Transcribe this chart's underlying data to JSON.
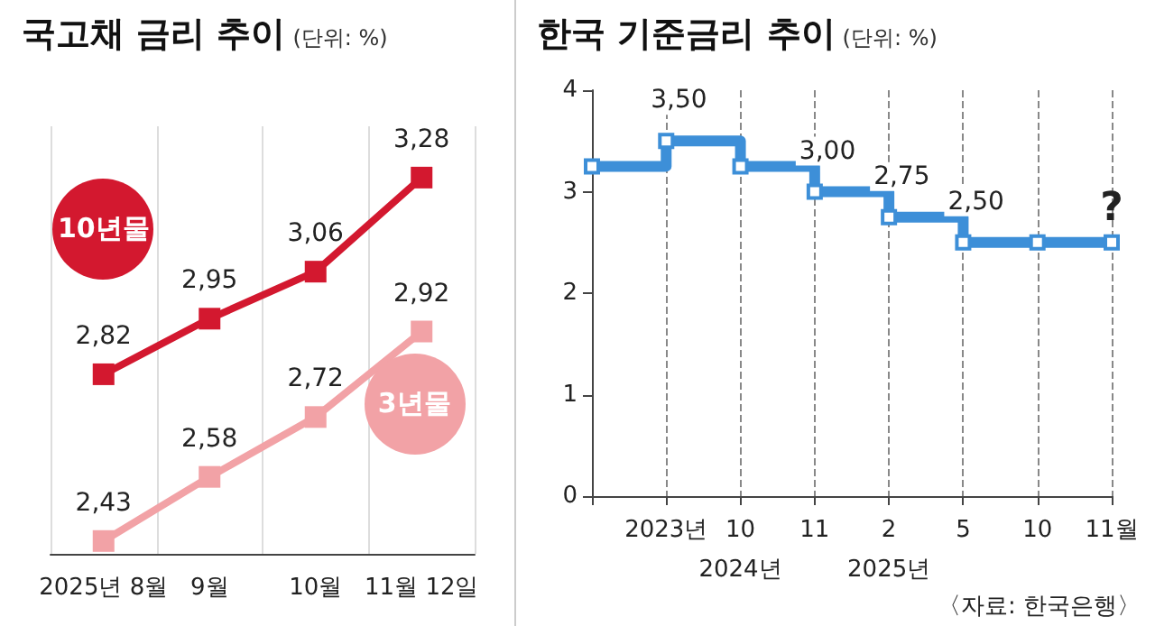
{
  "chart_data": [
    {
      "type": "line",
      "title": "국고채 금리 추이",
      "subtitle": "(단위: %)",
      "categories": [
        "2025년 8월",
        "9월",
        "10월",
        "11월 12일"
      ],
      "series": [
        {
          "name": "10년물",
          "color": "#d3182f",
          "values": [
            2.82,
            2.95,
            3.06,
            3.28
          ],
          "value_labels": [
            "2,82",
            "2,95",
            "3,06",
            "3,28"
          ]
        },
        {
          "name": "3년물",
          "color": "#f2a2a6",
          "values": [
            2.43,
            2.58,
            2.72,
            2.92
          ],
          "value_labels": [
            "2,43",
            "2,58",
            "2,72",
            "2,92"
          ]
        }
      ],
      "marker": "square",
      "grid": "x",
      "legend": false,
      "tick_labels": "x"
    },
    {
      "type": "step",
      "title": "한국 기준금리 추이",
      "subtitle": "(단위: %)",
      "categories": [
        null,
        "2023년",
        "10\n2024년",
        "11",
        "2\n2025년",
        "5",
        "10",
        "11월"
      ],
      "series": [
        {
          "color": "#3d8fd8",
          "values": [
            3.25,
            3.5,
            3.25,
            3.0,
            2.75,
            2.5,
            2.5,
            2.5
          ],
          "value_labels": [
            null,
            "3,50",
            null,
            "3,00",
            "2,75",
            "2,50",
            null,
            null
          ]
        }
      ],
      "ylim": [
        0,
        4
      ],
      "yticks": [
        0,
        1,
        2,
        3,
        4
      ],
      "annotations": [
        {
          "text": "?",
          "x": "11월",
          "y": 2.5
        },
        "〈자료: 한국은행〉"
      ],
      "marker": "square",
      "grid": "x",
      "legend": false
    }
  ]
}
